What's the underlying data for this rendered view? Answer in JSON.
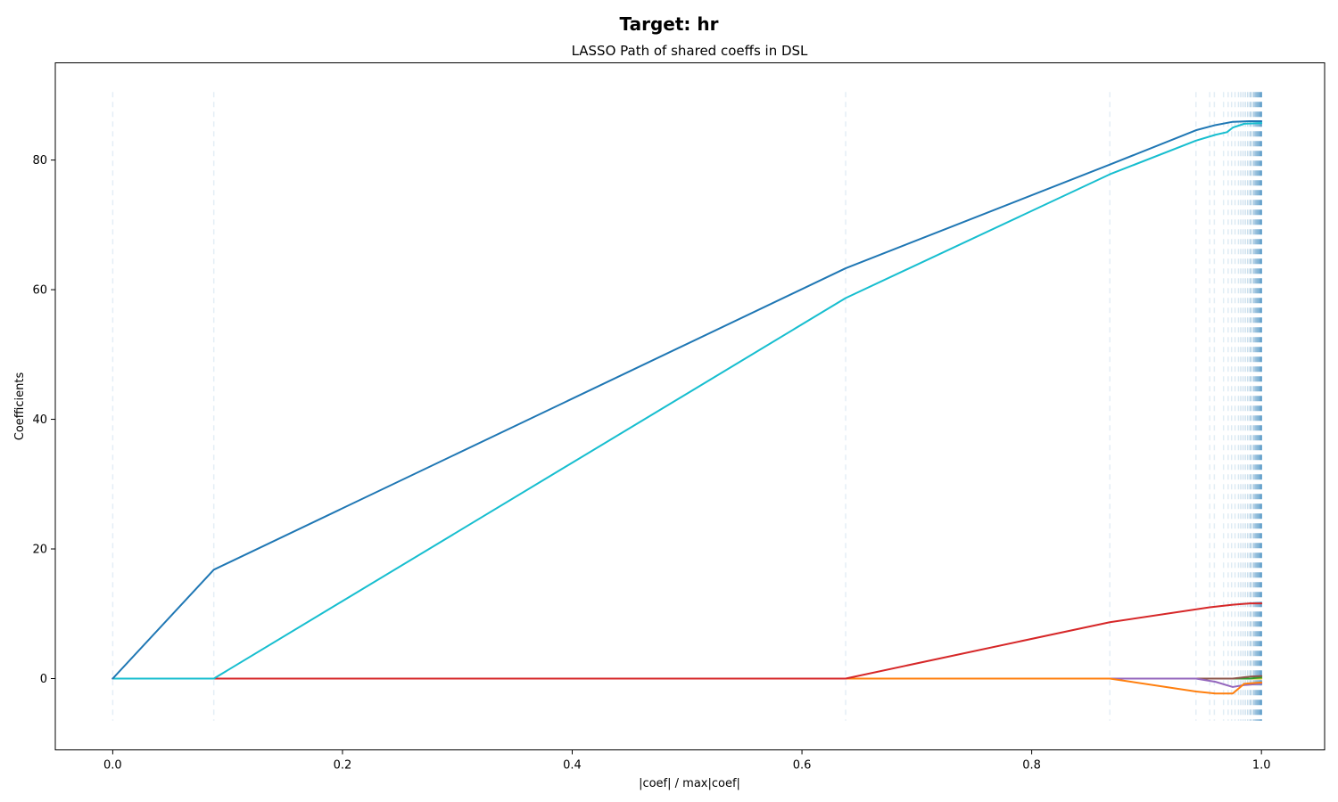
{
  "figure": {
    "suptitle": "Target: hr"
  },
  "chart_data": {
    "type": "line",
    "title": "LASSO Path of shared coeffs in DSL",
    "xlabel": "|coef| / max|coef|",
    "ylabel": "Coefficients",
    "xlim": [
      -0.05,
      1.055
    ],
    "ylim": [
      -11,
      95
    ],
    "xticks": [
      0.0,
      0.2,
      0.4,
      0.6,
      0.8,
      1.0
    ],
    "xtick_labels": [
      "0.0",
      "0.2",
      "0.4",
      "0.6",
      "0.8",
      "1.0"
    ],
    "yticks": [
      0,
      20,
      40,
      60,
      80
    ],
    "ytick_labels": [
      "0",
      "20",
      "40",
      "60",
      "80"
    ],
    "grid": false,
    "legend": "none",
    "vlines": {
      "ymin": -6.5,
      "ymax": 90.5,
      "style": "dashed",
      "x": [
        0.0,
        0.088,
        0.638,
        0.868,
        0.943,
        0.955,
        0.959,
        0.967,
        0.971,
        0.974,
        0.977,
        0.98,
        0.982,
        0.984,
        0.986,
        0.988,
        0.99,
        0.991,
        0.993,
        0.994,
        0.995,
        0.996,
        0.997,
        0.998,
        0.999,
        1.0
      ]
    },
    "series": [
      {
        "color": "#1f77b4",
        "x": [
          0.0,
          0.088,
          0.638,
          0.868,
          0.943,
          0.96,
          0.975,
          0.99,
          1.0
        ],
        "y": [
          0,
          16.8,
          63.3,
          79.3,
          84.6,
          85.4,
          85.9,
          86.0,
          86.0
        ]
      },
      {
        "color": "#17becf",
        "x": [
          0.0,
          0.088,
          0.638,
          0.868,
          0.943,
          0.96,
          0.97,
          0.975,
          0.985,
          1.0
        ],
        "y": [
          0,
          0,
          58.7,
          77.8,
          83.0,
          83.9,
          84.3,
          85.0,
          85.6,
          85.7
        ]
      },
      {
        "color": "#d62728",
        "x": [
          0.0,
          0.638,
          0.868,
          0.955,
          0.975,
          0.99,
          1.0
        ],
        "y": [
          0,
          0,
          8.7,
          11.0,
          11.4,
          11.6,
          11.6
        ]
      },
      {
        "color": "#ff7f0e",
        "x": [
          0.0,
          0.868,
          0.943,
          0.96,
          0.97,
          0.975,
          0.985,
          1.0
        ],
        "y": [
          0,
          0,
          -2.0,
          -2.3,
          -2.3,
          -2.3,
          -0.8,
          -0.6
        ]
      },
      {
        "color": "#9467bd",
        "x": [
          0.0,
          0.943,
          0.96,
          0.975,
          0.985,
          1.0
        ],
        "y": [
          0,
          0,
          -0.5,
          -1.3,
          -1.0,
          -0.8
        ]
      },
      {
        "color": "#8c564b",
        "x": [
          0.0,
          0.975,
          0.99,
          1.0
        ],
        "y": [
          0,
          0,
          0.3,
          0.4
        ]
      },
      {
        "color": "#2ca02c",
        "x": [
          0.0,
          0.99,
          1.0
        ],
        "y": [
          0,
          0,
          0.2
        ]
      },
      {
        "color": "#bcbd22",
        "x": [
          0.0,
          1.0
        ],
        "y": [
          0,
          0
        ]
      }
    ]
  }
}
